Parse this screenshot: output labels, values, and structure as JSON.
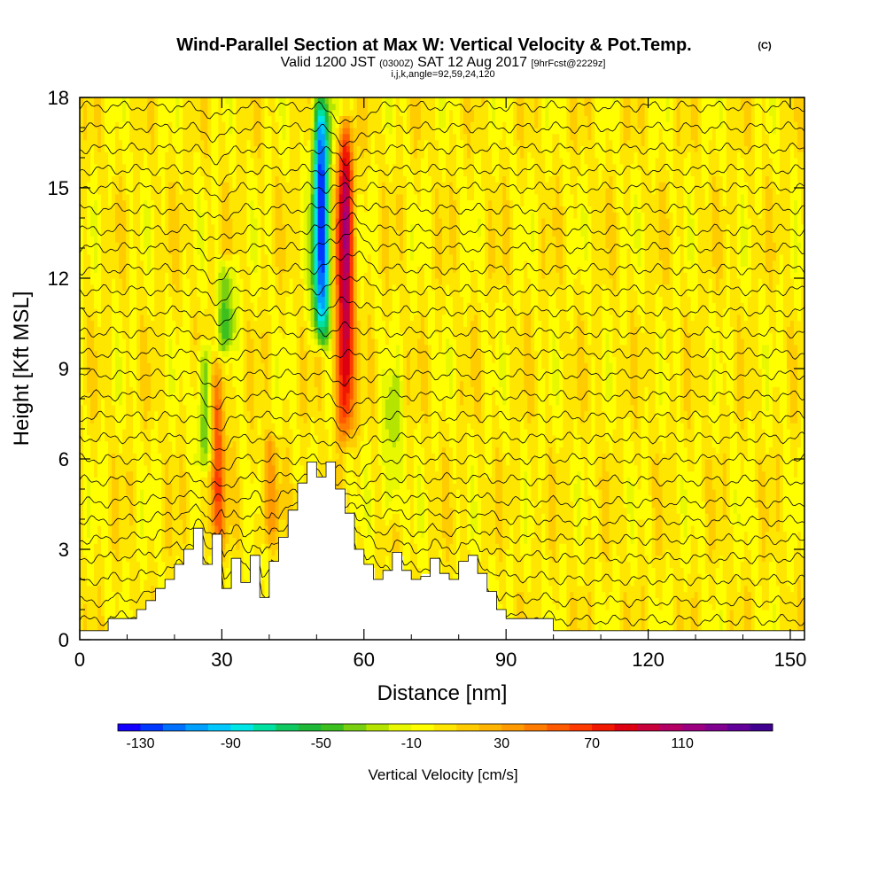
{
  "chart_data": {
    "type": "heatmap",
    "title": "Wind-Parallel Section at Max W: Vertical Velocity & Pot.Temp.",
    "title_unit": "(C)",
    "subtitle_valid": "Valid 1200 JST",
    "subtitle_utc": "(0300Z)",
    "subtitle_date": "SAT 12 Aug 2017",
    "subtitle_fcst": "[9hrFcst@2229z]",
    "subtitle_indices": "i,j,k,angle=92,59,24,120",
    "xlabel": "Distance [nm]",
    "ylabel": "Height [Kft MSL]",
    "xlim": [
      0,
      153
    ],
    "ylim": [
      0,
      18
    ],
    "x_ticks": [
      "0",
      "30",
      "60",
      "90",
      "120",
      "150"
    ],
    "y_ticks": [
      "0",
      "3",
      "6",
      "9",
      "12",
      "15",
      "18"
    ],
    "grid": false,
    "colorbar": {
      "title": "Vertical Velocity [cm/s]",
      "min": -140,
      "max": 150,
      "step": 10,
      "tick_labels": [
        "-130",
        "-90",
        "-50",
        "-10",
        "30",
        "70",
        "110"
      ],
      "colors": [
        "#1400ff",
        "#0038ff",
        "#0070ff",
        "#00a0ff",
        "#00c8ff",
        "#00e6e6",
        "#00e0a0",
        "#10c860",
        "#20b838",
        "#3cc020",
        "#78d010",
        "#b4e400",
        "#e8f800",
        "#ffff00",
        "#ffe600",
        "#ffcc00",
        "#ffb400",
        "#ff9a00",
        "#ff7c00",
        "#ff5a00",
        "#ff3a00",
        "#f01800",
        "#dc0010",
        "#c8003c",
        "#b40064",
        "#9c0080",
        "#800090",
        "#600098",
        "#400090"
      ]
    },
    "terrain": {
      "x": [
        0,
        6,
        6,
        12,
        12,
        14,
        14,
        16,
        16,
        18,
        18,
        20,
        20,
        22,
        22,
        24,
        24,
        26,
        26,
        28,
        28,
        30,
        30,
        32,
        32,
        34,
        34,
        36,
        36,
        38,
        38,
        40,
        40,
        42,
        42,
        44,
        44,
        46,
        46,
        48,
        48,
        50,
        50,
        52,
        52,
        54,
        54,
        56,
        56,
        58,
        58,
        60,
        60,
        62,
        62,
        64,
        64,
        66,
        66,
        68,
        68,
        70,
        70,
        72,
        72,
        74,
        74,
        76,
        76,
        78,
        78,
        80,
        80,
        82,
        82,
        84,
        84,
        86,
        86,
        88,
        88,
        90,
        90,
        100,
        100,
        153
      ],
      "z": [
        0.3,
        0.3,
        0.7,
        0.7,
        1.0,
        1.0,
        1.3,
        1.3,
        1.7,
        1.7,
        2.0,
        2.0,
        2.5,
        2.5,
        3.0,
        3.0,
        3.7,
        3.7,
        2.5,
        2.5,
        3.5,
        3.5,
        1.7,
        1.7,
        2.7,
        2.7,
        1.9,
        1.9,
        2.8,
        2.8,
        1.4,
        1.4,
        2.6,
        2.6,
        3.4,
        3.4,
        4.3,
        4.3,
        5.2,
        5.2,
        5.9,
        5.9,
        5.4,
        5.4,
        5.9,
        5.9,
        5.0,
        5.0,
        4.2,
        4.2,
        3.0,
        3.0,
        2.5,
        2.5,
        2.0,
        2.0,
        2.3,
        2.3,
        2.9,
        2.9,
        2.3,
        2.3,
        2.0,
        2.0,
        2.1,
        2.1,
        2.7,
        2.7,
        2.2,
        2.2,
        2.0,
        2.0,
        2.6,
        2.6,
        2.8,
        2.8,
        2.2,
        2.2,
        1.6,
        1.6,
        1.0,
        1.0,
        0.7,
        0.7,
        0.3,
        0.3
      ]
    },
    "features": [
      {
        "kind": "updraft",
        "x": 56,
        "z_bottom": 6.8,
        "z_top": 17.0,
        "w_max": 105
      },
      {
        "kind": "downdraft",
        "x": 51,
        "z_bottom": 10.0,
        "z_top": 18.0,
        "w_min": -125
      },
      {
        "kind": "updraft",
        "x": 29,
        "z_bottom": 3.2,
        "z_top": 9.0,
        "w_max": 55
      },
      {
        "kind": "downdraft",
        "x": 26.5,
        "z_bottom": 6.0,
        "z_top": 9.5,
        "w_min": -45
      },
      {
        "kind": "downdraft",
        "x": 31,
        "z_bottom": 10.0,
        "z_top": 12.2,
        "w_min": -45
      },
      {
        "kind": "downdraft",
        "x": 66,
        "z_bottom": 4.2,
        "z_top": 8.5,
        "w_min": -30
      },
      {
        "kind": "updraft",
        "x": 40,
        "z_bottom": 3.5,
        "z_top": 6.5,
        "w_max": 30
      }
    ],
    "theta_contours": {
      "units": "C",
      "levels": [
        28,
        30,
        32,
        34,
        36,
        38,
        40,
        42,
        44,
        46,
        48,
        50,
        52,
        54,
        56,
        58,
        60,
        62,
        64,
        66,
        68,
        70,
        72,
        74,
        76,
        78
      ],
      "base_heights_kft": [
        0.8,
        1.4,
        2.1,
        2.8,
        3.4,
        4.0,
        4.6,
        5.3,
        6.0,
        6.7,
        7.4,
        8.1,
        8.8,
        9.5,
        10.2,
        10.9,
        11.6,
        12.3,
        13.0,
        13.6,
        14.3,
        15.0,
        15.6,
        16.3,
        17.0,
        17.7
      ]
    }
  }
}
